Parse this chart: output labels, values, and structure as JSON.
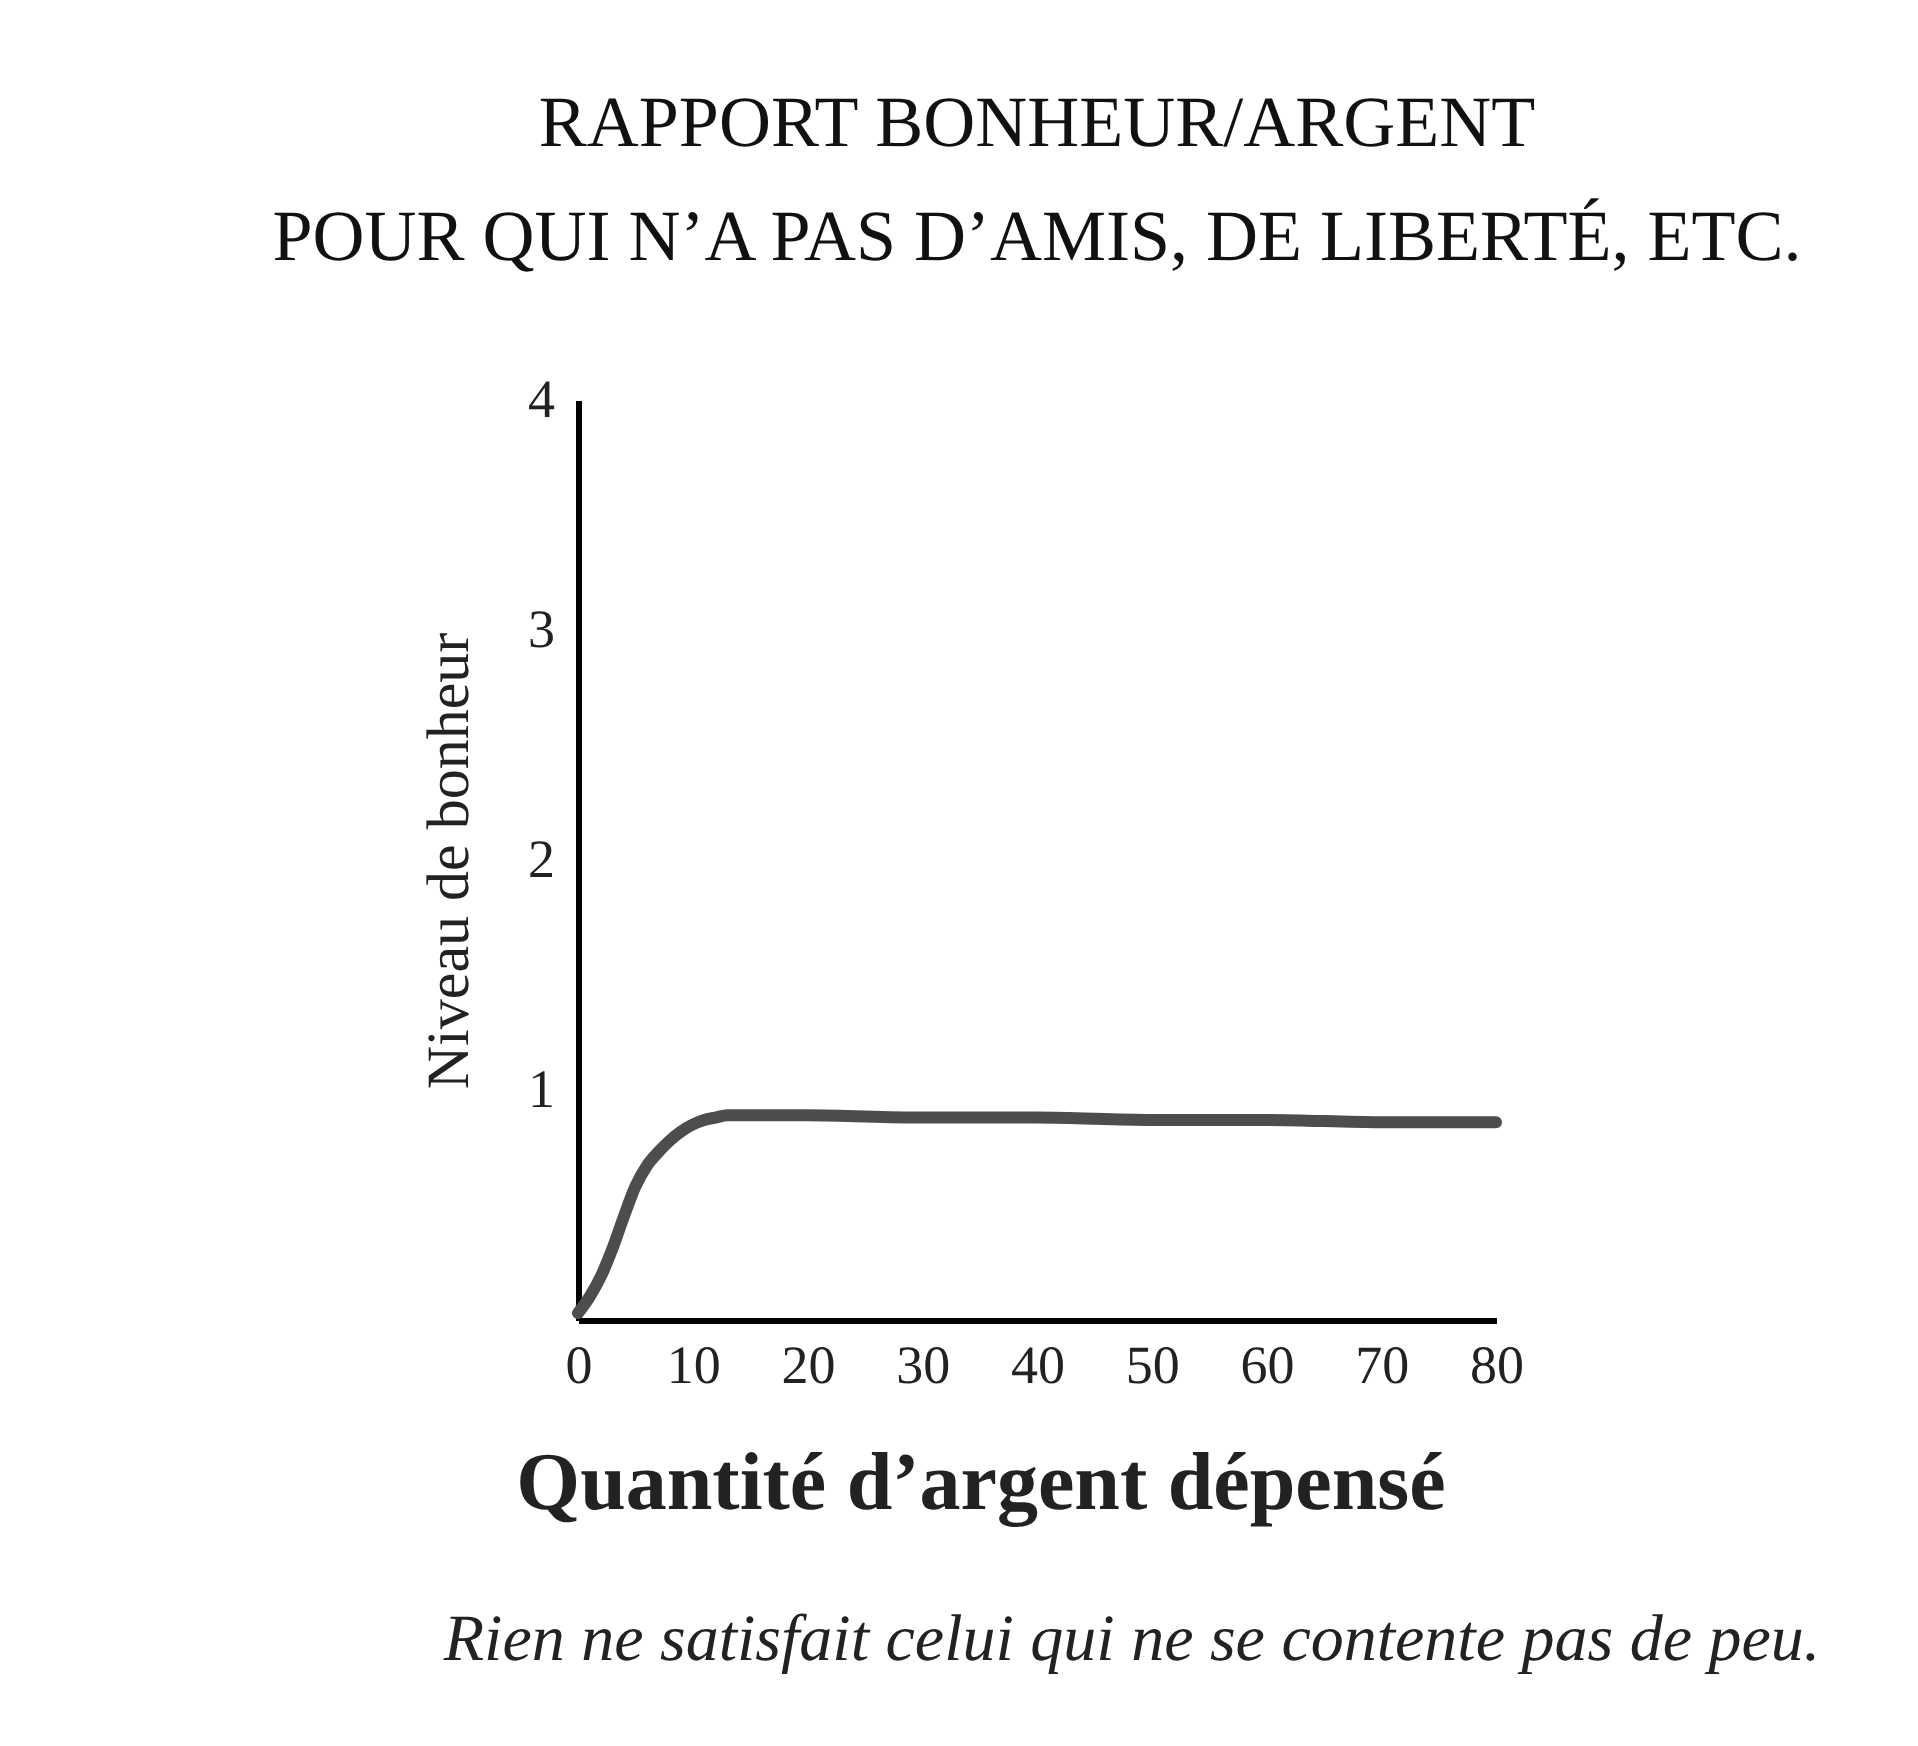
{
  "chart_data": {
    "type": "line",
    "title": "RAPPORT BONHEUR/ARGENT",
    "subtitle": "POUR QUI N’A PAS D’AMIS, DE LIBERTÉ, ETC.",
    "xlabel": "Quantité d’argent dépensé",
    "ylabel": "Niveau de bonheur",
    "annotations": [
      "Rien ne satisfait celui qui ne se contente pas de peu."
    ],
    "x": [
      0,
      1,
      2,
      3,
      4,
      5,
      6,
      7,
      8,
      9,
      10,
      11,
      12,
      13,
      15,
      20,
      30,
      40,
      50,
      60,
      70,
      80
    ],
    "series": [
      {
        "color": "#4d4d4d",
        "values": [
          0.03,
          0.1,
          0.19,
          0.31,
          0.45,
          0.58,
          0.67,
          0.73,
          0.78,
          0.82,
          0.85,
          0.87,
          0.88,
          0.89,
          0.89,
          0.89,
          0.88,
          0.88,
          0.87,
          0.87,
          0.86,
          0.86
        ]
      }
    ],
    "xlim": [
      0,
      80
    ],
    "xticks": [
      0,
      10,
      20,
      30,
      40,
      50,
      60,
      70,
      80
    ],
    "ylim": [
      0,
      4
    ],
    "yticks": [
      1,
      2,
      3,
      4
    ],
    "grid": false,
    "marker": "none",
    "line_style": "solid"
  }
}
